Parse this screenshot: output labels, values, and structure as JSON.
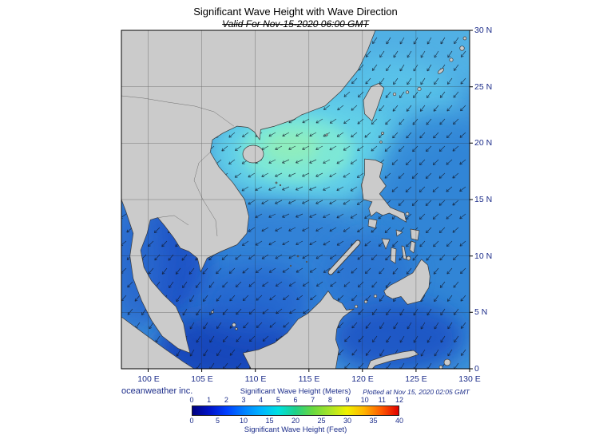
{
  "header": {
    "title": "Significant Wave Height with Wave Direction",
    "subtitle": "Valid For Nov-15-2020 06:00 GMT"
  },
  "axes": {
    "lon_labels": [
      "100 E",
      "105 E",
      "110 E",
      "115 E",
      "120 E",
      "125 E",
      "130 E"
    ],
    "lat_labels": [
      "30 N",
      "25 N",
      "20 N",
      "15 N",
      "10 N",
      "5 N",
      "0"
    ]
  },
  "colorbar": {
    "meters_label": "Significant Wave Height (Meters)",
    "feet_label": "Significant Wave Height (Feet)",
    "meters_ticks": [
      "0",
      "1",
      "2",
      "3",
      "4",
      "5",
      "6",
      "7",
      "8",
      "9",
      "10",
      "11",
      "12"
    ],
    "feet_ticks": [
      "0",
      "5",
      "10",
      "15",
      "20",
      "25",
      "30",
      "35",
      "40"
    ],
    "colors": [
      "#000080",
      "#0014c8",
      "#0040ff",
      "#0080ff",
      "#00b4ff",
      "#00e0e0",
      "#20d088",
      "#68d840",
      "#a8e428",
      "#f0f000",
      "#ffb400",
      "#ff5a00",
      "#e00000"
    ]
  },
  "footer": {
    "credit": "oceanweather inc.",
    "plotted": "Plotted at Nov 15, 2020 02:05 GMT"
  }
}
